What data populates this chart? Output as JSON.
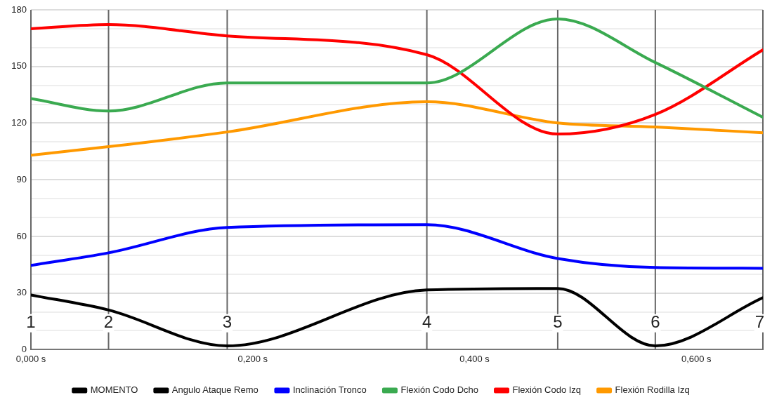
{
  "chart_data": {
    "type": "line",
    "x": [
      0,
      0.07,
      0.177,
      0.357,
      0.475,
      0.563,
      0.66
    ],
    "xlim": [
      0,
      0.66
    ],
    "xticks": [
      {
        "value": 0,
        "label": "0,000 s"
      },
      {
        "value": 0.2,
        "label": "0,200 s"
      },
      {
        "value": 0.4,
        "label": "0,400 s"
      },
      {
        "value": 0.6,
        "label": "0,600 s"
      }
    ],
    "ylim": [
      0,
      180
    ],
    "yticks": [
      0,
      {
        "value": 10,
        "label": null
      },
      {
        "value": 20,
        "label": null
      },
      30,
      {
        "value": 40,
        "label": null
      },
      {
        "value": 50,
        "label": null
      },
      60,
      {
        "value": 70,
        "label": null
      },
      {
        "value": 80,
        "label": null
      },
      90,
      {
        "value": 100,
        "label": null
      },
      {
        "value": 110,
        "label": null
      },
      120,
      {
        "value": 130,
        "label": null
      },
      {
        "value": 140,
        "label": null
      },
      150,
      {
        "value": 160,
        "label": null
      },
      {
        "value": 170,
        "label": null
      },
      180
    ],
    "grid": "y",
    "legend": "bottom",
    "marker": "none",
    "series": [
      {
        "name": "MOMENTO",
        "color": "#000000",
        "values": [
          null,
          null,
          null,
          null,
          null,
          null,
          null
        ]
      },
      {
        "name": "Angulo Ataque Remo",
        "color": "#000000",
        "values": [
          29,
          21,
          2,
          31.6,
          32.4,
          2,
          27.5
        ]
      },
      {
        "name": "Inclinación Tronco",
        "color": "#0000ff",
        "values": [
          44.6,
          51.3,
          64.7,
          66.2,
          48.3,
          43.5,
          43.1
        ]
      },
      {
        "name": "Flexión Codo Dcho",
        "color": "#3aaa50",
        "values": [
          133,
          126.4,
          141.3,
          141.3,
          175.2,
          152.1,
          123.1
        ]
      },
      {
        "name": "Flexión Codo Izq",
        "color": "#ff0000",
        "values": [
          170,
          172.2,
          166.2,
          156.2,
          114.2,
          124.6,
          158.8
        ]
      },
      {
        "name": "Flexión Rodilla Izq",
        "color": "#ff9900",
        "values": [
          103,
          107.5,
          115.3,
          131.3,
          120.1,
          117.9,
          114.9
        ]
      }
    ],
    "ref_lines": [
      {
        "axis": "x",
        "value": 0,
        "color": "#666666"
      },
      {
        "axis": "x",
        "value": 0.07,
        "color": "#666666"
      },
      {
        "axis": "x",
        "value": 0.177,
        "color": "#666666"
      },
      {
        "axis": "x",
        "value": 0.357,
        "color": "#666666"
      },
      {
        "axis": "x",
        "value": 0.475,
        "color": "#666666"
      },
      {
        "axis": "x",
        "value": 0.563,
        "color": "#666666"
      },
      {
        "axis": "x",
        "value": 0.66,
        "color": "#666666"
      }
    ],
    "annotations": [
      {
        "text": "1",
        "x": 0,
        "y": 14
      },
      {
        "text": "2",
        "x": 0.07,
        "y": 14
      },
      {
        "text": "3",
        "x": 0.177,
        "y": 14
      },
      {
        "text": "4",
        "x": 0.357,
        "y": 14
      },
      {
        "text": "5",
        "x": 0.475,
        "y": 14
      },
      {
        "text": "6",
        "x": 0.563,
        "y": 14
      },
      {
        "text": "7",
        "x": 0.66,
        "y": 14
      }
    ]
  }
}
